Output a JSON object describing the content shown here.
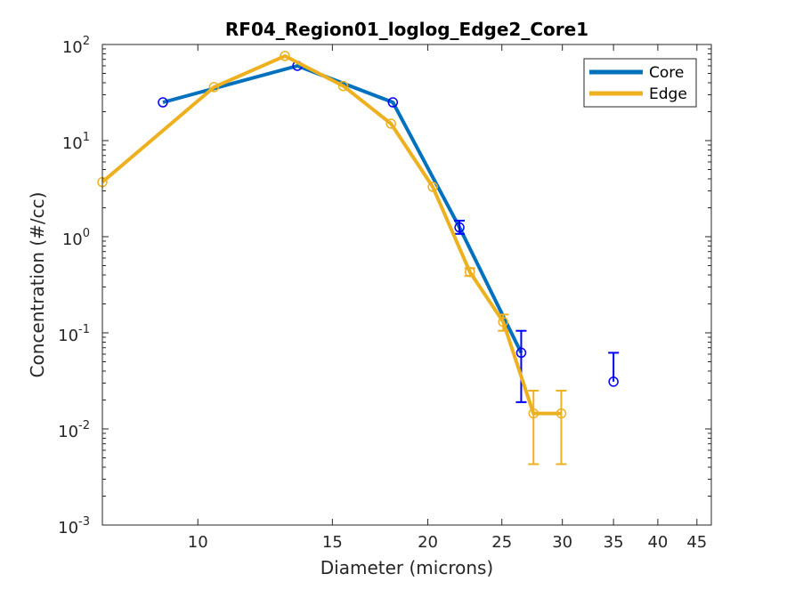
{
  "chart_data": {
    "type": "line",
    "title": "RF04_Region01_loglog_Edge2_Core1",
    "xlabel": "Diameter (microns)",
    "ylabel": "Concentration (#/cc)",
    "xscale": "log",
    "yscale": "log",
    "xlim": [
      7.5,
      47
    ],
    "ylim": [
      0.001,
      100
    ],
    "xticks": [
      10,
      15,
      20,
      25,
      30,
      35,
      40,
      45
    ],
    "xtick_labels": [
      "10",
      "15",
      "20",
      "25",
      "30",
      "35",
      "40",
      "45"
    ],
    "yticks": [
      0.001,
      0.01,
      0.1,
      1,
      10,
      100
    ],
    "ytick_labels": [
      {
        "base": "10",
        "exp": "-3"
      },
      {
        "base": "10",
        "exp": "-2"
      },
      {
        "base": "10",
        "exp": "-1"
      },
      {
        "base": "10",
        "exp": "0"
      },
      {
        "base": "10",
        "exp": "1"
      },
      {
        "base": "10",
        "exp": "2"
      }
    ],
    "legend": {
      "location": "top-right",
      "entries": [
        "Core",
        "Edge"
      ]
    },
    "series": [
      {
        "name": "Core",
        "line_color": "#0072BD",
        "marker_color": "#0000FF",
        "x": [
          9.0,
          13.5,
          18.0,
          22.0,
          26.5
        ],
        "y": [
          25,
          60,
          25,
          1.25,
          0.062
        ],
        "err_low": [
          0,
          0,
          0,
          0.18,
          0.043
        ],
        "err_high": [
          0,
          0,
          0,
          0.22,
          0.043
        ],
        "markers_only": [
          {
            "x": 35.0,
            "y": 0.031,
            "err_high": 0.031
          }
        ]
      },
      {
        "name": "Edge",
        "line_color": "#EDB120",
        "marker_color": "#EDB120",
        "x": [
          7.5,
          10.5,
          13.0,
          15.5,
          17.9,
          20.3,
          22.7,
          25.1,
          27.5,
          29.9
        ],
        "y": [
          3.7,
          36,
          76,
          37,
          15,
          3.3,
          0.43,
          0.13,
          0.0145,
          0.0145
        ],
        "err_low": [
          0,
          0,
          0,
          0,
          0,
          0,
          0.04,
          0.025,
          0.0102,
          0.0102
        ],
        "err_high": [
          0,
          0,
          0,
          0,
          0,
          0,
          0.04,
          0.025,
          0.0105,
          0.0105
        ]
      }
    ]
  }
}
